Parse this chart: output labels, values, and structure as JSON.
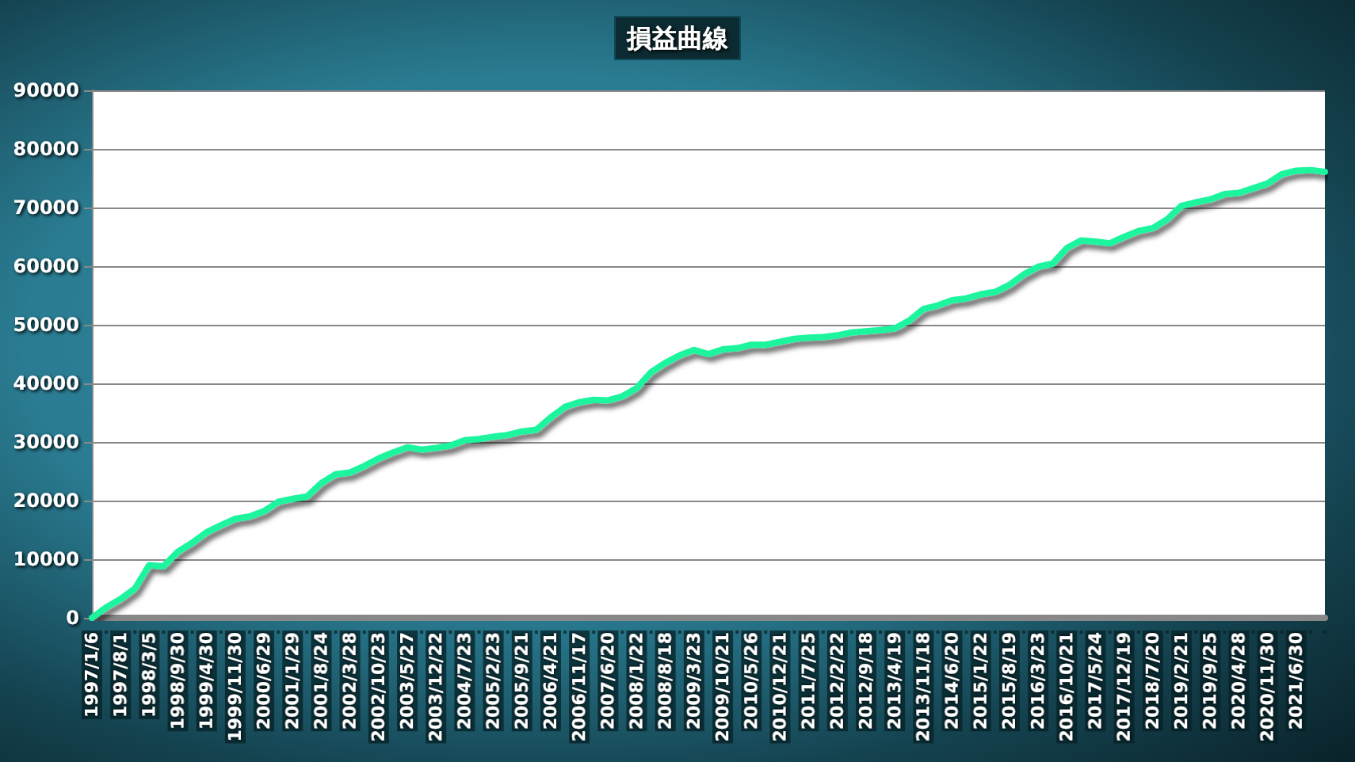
{
  "chart_data": {
    "type": "line",
    "title": "損益曲線",
    "categories": [
      "1997/1/6",
      null,
      "1997/8/1",
      null,
      "1998/3/5",
      null,
      "1998/9/30",
      null,
      "1999/4/30",
      null,
      "1999/11/30",
      null,
      "2000/6/29",
      null,
      "2001/1/29",
      null,
      "2001/8/24",
      null,
      "2002/3/28",
      null,
      "2002/10/23",
      null,
      "2003/5/27",
      null,
      "2003/12/22",
      null,
      "2004/7/23",
      null,
      "2005/2/23",
      null,
      "2005/9/21",
      null,
      "2006/4/21",
      null,
      "2006/11/17",
      null,
      "2007/6/20",
      null,
      "2008/1/22",
      null,
      "2008/8/18",
      null,
      "2009/3/23",
      null,
      "2009/10/21",
      null,
      "2010/5/26",
      null,
      "2010/12/21",
      null,
      "2011/7/25",
      null,
      "2012/2/22",
      null,
      "2012/9/18",
      null,
      "2013/4/19",
      null,
      "2013/11/18",
      null,
      "2014/6/20",
      null,
      "2015/1/22",
      null,
      "2015/8/19",
      null,
      "2016/3/23",
      null,
      "2016/10/21",
      null,
      "2017/5/24",
      null,
      "2017/12/19",
      null,
      "2018/7/20",
      null,
      "2019/2/21",
      null,
      "2019/9/25",
      null,
      "2020/4/28",
      null,
      "2020/11/30",
      null,
      "2021/6/30",
      null,
      null
    ],
    "series": [
      {
        "color": "#1af59e",
        "values": [
          0,
          1800,
          3200,
          5000,
          9000,
          8800,
          11300,
          12800,
          14600,
          15800,
          16900,
          17300,
          18200,
          19800,
          20300,
          20700,
          23000,
          24500,
          24800,
          25900,
          27200,
          28200,
          29100,
          28700,
          29000,
          29400,
          30300,
          30500,
          30900,
          31200,
          31800,
          32100,
          34200,
          36000,
          36800,
          37200,
          37100,
          37800,
          39200,
          41900,
          43500,
          44800,
          45700,
          45000,
          45800,
          46000,
          46600,
          46600,
          47100,
          47600,
          47800,
          47900,
          48200,
          48700,
          48900,
          49100,
          49400,
          50700,
          52700,
          53300,
          54200,
          54500,
          55200,
          55600,
          56800,
          58600,
          59900,
          60400,
          63100,
          64400,
          64200,
          63900,
          65000,
          66000,
          66500,
          68000,
          70300,
          70900,
          71400,
          72300,
          72500,
          73300,
          74100,
          75700,
          76300,
          76400,
          76100
        ]
      }
    ],
    "ylim": [
      0,
      90000
    ],
    "yticks": [
      0,
      10000,
      20000,
      30000,
      40000,
      50000,
      60000,
      70000,
      80000,
      90000
    ],
    "grid": "y",
    "marker": "none",
    "line_style": "solid"
  }
}
